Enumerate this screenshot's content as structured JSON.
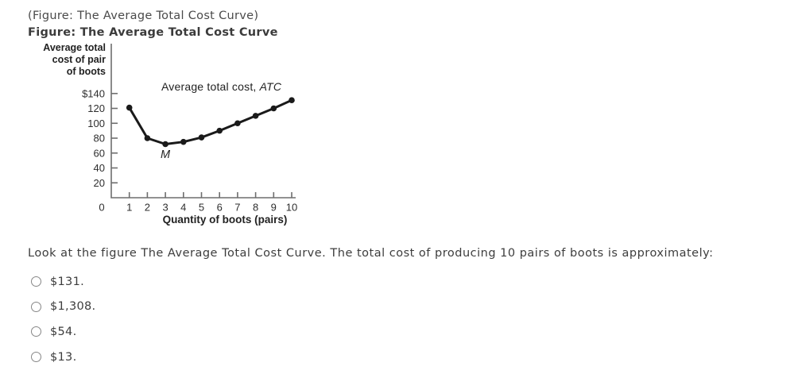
{
  "figure": {
    "reference": "(Figure: The Average Total Cost Curve)",
    "title": "Figure: The Average Total Cost Curve"
  },
  "chart_data": {
    "type": "line",
    "series_name": "Average total cost (ATC)",
    "curve_label": {
      "prefix": "Average total cost, ",
      "italic": "ATC"
    },
    "min_point_label": "M",
    "ylabel_lines": [
      "Average total",
      "cost of pair",
      "of boots"
    ],
    "xlabel": "Quantity of boots (pairs)",
    "x": [
      1,
      2,
      3,
      4,
      5,
      6,
      7,
      8,
      9,
      10
    ],
    "values": [
      121,
      80,
      72,
      75,
      81,
      90,
      100,
      110,
      120,
      131
    ],
    "x_tick_labels": [
      "1",
      "2",
      "3",
      "4",
      "5",
      "6",
      "7",
      "8",
      "9",
      "10"
    ],
    "y_ticks": [
      {
        "value": 140,
        "label": "$140"
      },
      {
        "value": 120,
        "label": "120"
      },
      {
        "value": 100,
        "label": "100"
      },
      {
        "value": 80,
        "label": "80"
      },
      {
        "value": 60,
        "label": "60"
      },
      {
        "value": 40,
        "label": "40"
      },
      {
        "value": 20,
        "label": "20"
      }
    ],
    "origin_label": "0",
    "xlim": [
      0,
      10
    ],
    "ylim": [
      0,
      150
    ],
    "grid": false,
    "legend_position": "none",
    "min_point": {
      "x": 3,
      "y": 72
    }
  },
  "question": {
    "text": "Look at the figure The Average Total Cost Curve. The total cost of producing 10 pairs of boots is approximately:"
  },
  "options": [
    {
      "label": "$131.",
      "selected": false
    },
    {
      "label": "$1,308.",
      "selected": false
    },
    {
      "label": "$54.",
      "selected": false
    },
    {
      "label": "$13.",
      "selected": false
    }
  ],
  "colors": {
    "curve": "#1a1a1a",
    "axis": "#6e6e6e",
    "tick_text": "#2e2e2e",
    "reference_text": "#4a4a4a",
    "title_text": "#3b3b3b",
    "question_text": "#3d3d3d",
    "radio_border": "#878787"
  }
}
